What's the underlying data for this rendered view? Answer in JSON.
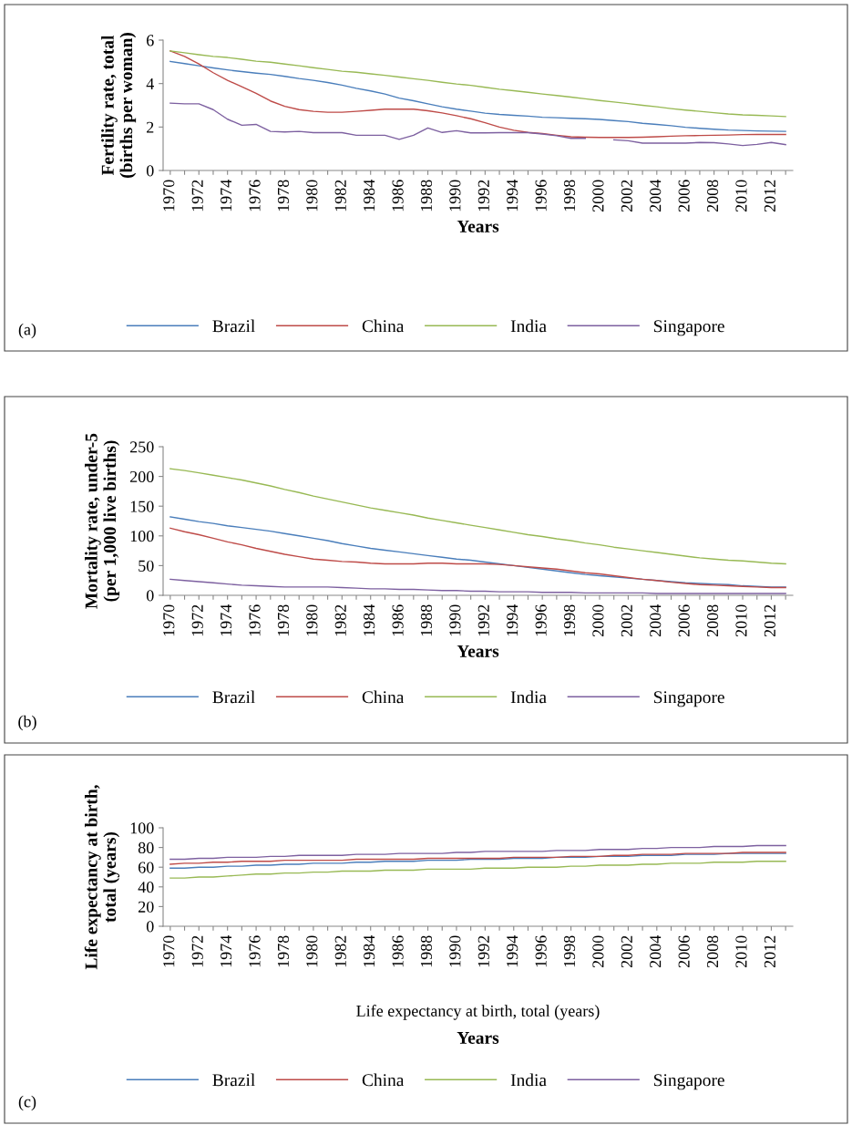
{
  "chart_data": [
    {
      "type": "line",
      "ylabel": "Fertility rate, total\n(births per woman)",
      "xlabel": "Years",
      "annotations": [
        "(a)"
      ],
      "legend": "bottom",
      "ylim": [
        0,
        6
      ],
      "yticks": [
        0,
        2,
        4,
        6
      ],
      "categories": [
        "1970",
        null,
        "1972",
        null,
        "1974",
        null,
        "1976",
        null,
        "1978",
        null,
        "1980",
        null,
        "1982",
        null,
        "1984",
        null,
        "1986",
        null,
        "1988",
        null,
        "1990",
        null,
        "1992",
        null,
        "1994",
        null,
        "1996",
        null,
        "1998",
        null,
        "2000",
        null,
        "2002",
        null,
        "2004",
        null,
        "2006",
        null,
        "2008",
        null,
        "2010",
        null,
        "2012",
        null
      ],
      "series": [
        {
          "name": "Brazil",
          "color": "#4a7ebb",
          "values": [
            5.02,
            4.92,
            4.82,
            4.72,
            4.63,
            4.55,
            4.48,
            4.42,
            4.33,
            4.23,
            4.15,
            4.05,
            3.93,
            3.78,
            3.66,
            3.52,
            3.33,
            3.21,
            3.07,
            2.93,
            2.82,
            2.73,
            2.64,
            2.58,
            2.54,
            2.5,
            2.45,
            2.43,
            2.4,
            2.38,
            2.35,
            2.3,
            2.25,
            2.17,
            2.12,
            2.06,
            1.99,
            1.94,
            1.9,
            1.86,
            1.84,
            1.82,
            1.81,
            1.8
          ]
        },
        {
          "name": "China",
          "color": "#be4b48",
          "values": [
            5.5,
            5.25,
            4.9,
            4.5,
            4.15,
            3.85,
            3.55,
            3.2,
            2.95,
            2.8,
            2.72,
            2.68,
            2.68,
            2.72,
            2.77,
            2.82,
            2.82,
            2.82,
            2.75,
            2.65,
            2.52,
            2.38,
            2.2,
            2.0,
            1.85,
            1.75,
            1.7,
            1.62,
            1.55,
            1.53,
            1.52,
            1.52,
            1.52,
            1.53,
            1.55,
            1.58,
            1.6,
            1.61,
            1.62,
            1.63,
            1.65,
            1.66,
            1.66,
            1.66
          ]
        },
        {
          "name": "India",
          "color": "#98b954",
          "values": [
            5.5,
            5.42,
            5.33,
            5.25,
            5.2,
            5.12,
            5.03,
            4.98,
            4.9,
            4.82,
            4.73,
            4.65,
            4.57,
            4.52,
            4.45,
            4.38,
            4.3,
            4.22,
            4.15,
            4.06,
            3.98,
            3.92,
            3.83,
            3.74,
            3.67,
            3.6,
            3.52,
            3.45,
            3.38,
            3.3,
            3.22,
            3.15,
            3.08,
            3.0,
            2.93,
            2.85,
            2.78,
            2.72,
            2.66,
            2.6,
            2.56,
            2.54,
            2.51,
            2.48
          ]
        },
        {
          "name": "Singapore",
          "color": "#7d60a0",
          "values": [
            3.1,
            3.07,
            3.07,
            2.8,
            2.36,
            2.08,
            2.12,
            1.8,
            1.77,
            1.8,
            1.74,
            1.74,
            1.74,
            1.62,
            1.62,
            1.62,
            1.43,
            1.62,
            1.96,
            1.75,
            1.83,
            1.73,
            1.73,
            1.74,
            1.74,
            1.74,
            1.68,
            1.6,
            1.48,
            1.48,
            null,
            1.41,
            1.37,
            1.26,
            1.26,
            1.26,
            1.26,
            1.29,
            1.28,
            1.22,
            1.15,
            1.2,
            1.29,
            1.19
          ]
        }
      ]
    },
    {
      "type": "line",
      "ylabel": "Mortality rate, under-5\n(per 1,000 live births)",
      "xlabel": "Years",
      "annotations": [
        "(b)"
      ],
      "legend": "bottom",
      "ylim": [
        0,
        250
      ],
      "yticks": [
        0,
        50,
        100,
        150,
        200,
        250
      ],
      "categories": [
        "1970",
        null,
        "1972",
        null,
        "1974",
        null,
        "1976",
        null,
        "1978",
        null,
        "1980",
        null,
        "1982",
        null,
        "1984",
        null,
        "1986",
        null,
        "1988",
        null,
        "1990",
        null,
        "1992",
        null,
        "1994",
        null,
        "1996",
        null,
        "1998",
        null,
        "2000",
        null,
        "2002",
        null,
        "2004",
        null,
        "2006",
        null,
        "2008",
        null,
        "2010",
        null,
        "2012",
        null
      ],
      "series": [
        {
          "name": "Brazil",
          "color": "#4a7ebb",
          "values": [
            132,
            128,
            124,
            121,
            117,
            114,
            111,
            108,
            104,
            100,
            96,
            92,
            87,
            83,
            79,
            76,
            73,
            70,
            67,
            64,
            61,
            59,
            56,
            53,
            50,
            47,
            44,
            41,
            38,
            35,
            33,
            31,
            29,
            27,
            25,
            23,
            21,
            20,
            19,
            18,
            16,
            15,
            14,
            14
          ]
        },
        {
          "name": "China",
          "color": "#be4b48",
          "values": [
            113,
            107,
            102,
            96,
            90,
            85,
            79,
            74,
            69,
            65,
            61,
            59,
            57,
            56,
            54,
            53,
            53,
            53,
            54,
            54,
            53,
            53,
            53,
            52,
            50,
            48,
            46,
            44,
            41,
            38,
            36,
            33,
            30,
            27,
            25,
            22,
            20,
            18,
            17,
            16,
            15,
            14,
            13,
            13
          ]
        },
        {
          "name": "India",
          "color": "#98b954",
          "values": [
            213,
            210,
            206,
            202,
            198,
            194,
            189,
            184,
            178,
            173,
            167,
            162,
            157,
            152,
            147,
            143,
            139,
            135,
            130,
            126,
            122,
            118,
            114,
            110,
            106,
            102,
            99,
            95,
            92,
            88,
            85,
            81,
            78,
            75,
            72,
            69,
            66,
            63,
            61,
            59,
            58,
            56,
            54,
            53
          ]
        },
        {
          "name": "Singapore",
          "color": "#7d60a0",
          "values": [
            27,
            25,
            23,
            21,
            19,
            17,
            16,
            15,
            14,
            14,
            14,
            14,
            13,
            12,
            11,
            11,
            10,
            10,
            9,
            8,
            8,
            7,
            7,
            6,
            6,
            6,
            5,
            5,
            5,
            4,
            4,
            4,
            4,
            4,
            3,
            3,
            3,
            3,
            3,
            3,
            3,
            3,
            3,
            3
          ]
        }
      ]
    },
    {
      "type": "line",
      "ylabel": "Life expectancy at birth,\ntotal (years)",
      "xlabel": "Years",
      "annotations": [
        "Life expectancy at birth, total (years)",
        "(c)"
      ],
      "legend": "bottom",
      "ylim": [
        0,
        100
      ],
      "yticks": [
        0,
        20,
        40,
        60,
        80,
        100
      ],
      "categories": [
        "1970",
        null,
        "1972",
        null,
        "1974",
        null,
        "1976",
        null,
        "1978",
        null,
        "1980",
        null,
        "1982",
        null,
        "1984",
        null,
        "1986",
        null,
        "1988",
        null,
        "1990",
        null,
        "1992",
        null,
        "1994",
        null,
        "1996",
        null,
        "1998",
        null,
        "2000",
        null,
        "2002",
        null,
        "2004",
        null,
        "2006",
        null,
        "2008",
        null,
        "2010",
        null,
        "2012",
        null
      ],
      "series": [
        {
          "name": "Brazil",
          "color": "#4a7ebb",
          "values": [
            59,
            59,
            60,
            60,
            61,
            61,
            62,
            62,
            63,
            63,
            64,
            64,
            64,
            65,
            65,
            66,
            66,
            66,
            67,
            67,
            67,
            68,
            68,
            68,
            69,
            69,
            69,
            70,
            70,
            70,
            71,
            71,
            71,
            72,
            72,
            72,
            73,
            73,
            73,
            74,
            74,
            74,
            74,
            74
          ]
        },
        {
          "name": "China",
          "color": "#be4b48",
          "values": [
            63,
            64,
            64,
            65,
            65,
            66,
            66,
            66,
            67,
            67,
            67,
            67,
            67,
            68,
            68,
            68,
            68,
            68,
            69,
            69,
            69,
            69,
            69,
            69,
            70,
            70,
            70,
            70,
            71,
            71,
            71,
            72,
            72,
            73,
            73,
            73,
            74,
            74,
            74,
            74,
            75,
            75,
            75,
            75
          ]
        },
        {
          "name": "India",
          "color": "#98b954",
          "values": [
            49,
            49,
            50,
            50,
            51,
            52,
            53,
            53,
            54,
            54,
            55,
            55,
            56,
            56,
            56,
            57,
            57,
            57,
            58,
            58,
            58,
            58,
            59,
            59,
            59,
            60,
            60,
            60,
            61,
            61,
            62,
            62,
            62,
            63,
            63,
            64,
            64,
            64,
            65,
            65,
            65,
            66,
            66,
            66
          ]
        },
        {
          "name": "Singapore",
          "color": "#7d60a0",
          "values": [
            68,
            68,
            69,
            69,
            70,
            70,
            70,
            71,
            71,
            72,
            72,
            72,
            72,
            73,
            73,
            73,
            74,
            74,
            74,
            74,
            75,
            75,
            76,
            76,
            76,
            76,
            76,
            77,
            77,
            77,
            78,
            78,
            78,
            79,
            79,
            80,
            80,
            80,
            81,
            81,
            81,
            82,
            82,
            82
          ]
        }
      ]
    }
  ]
}
